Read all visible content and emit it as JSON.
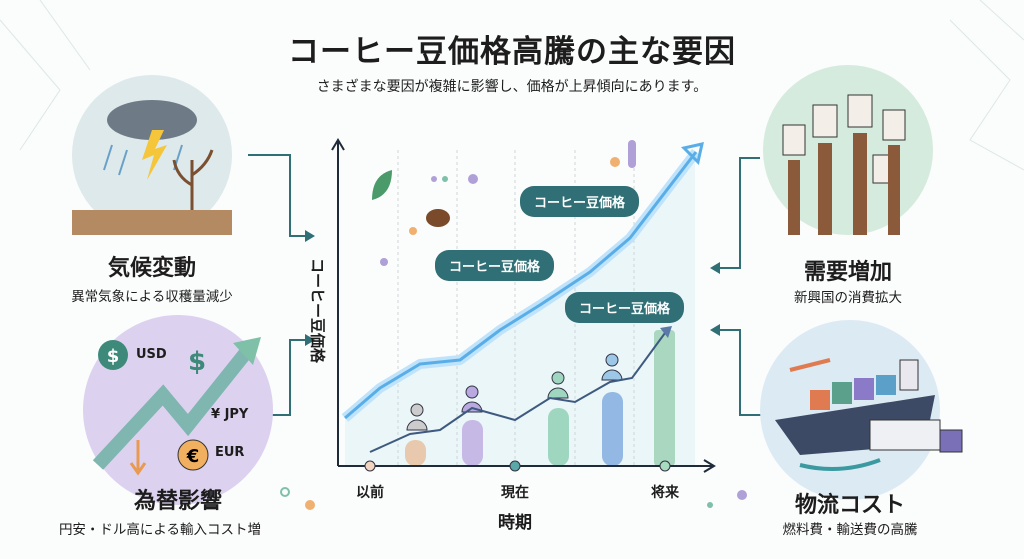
{
  "title": "コーヒー豆価格高騰の主な要因",
  "subtitle": "さまざまな要因が複雑に影響し、価格が上昇傾向にあります。",
  "factors": [
    {
      "label": "気候変動",
      "sub": "異常気象による収穫量減少",
      "icon": "storm-withered-plant-icon"
    },
    {
      "label": "為替影響",
      "sub": "円安・ドル高による輸入コスト増",
      "icon": "currency-exchange-icon",
      "currencies": [
        "USD",
        "¥ JPY",
        "EUR"
      ]
    },
    {
      "label": "需要増加",
      "sub": "新興国の消費拡大",
      "icon": "coffee-cups-hands-icon"
    },
    {
      "label": "物流コスト",
      "sub": "燃料費・輸送費の高騰",
      "icon": "cargo-ship-truck-icon"
    }
  ],
  "diagram": {
    "y_axis_label": "コーヒー豆価格",
    "x_axis_label": "時期",
    "x_ticks": [
      "以前",
      "現在",
      "将来"
    ],
    "callouts": [
      "コーヒー豆価格",
      "コーヒー豆価格",
      "コーヒー豆価格"
    ],
    "trend": "rising"
  },
  "colors": {
    "accent": "#2f6f75",
    "line": "#5aaee8",
    "purple": "#d9cdef",
    "green": "#d6ecdc",
    "blue": "#dbeaf5"
  }
}
